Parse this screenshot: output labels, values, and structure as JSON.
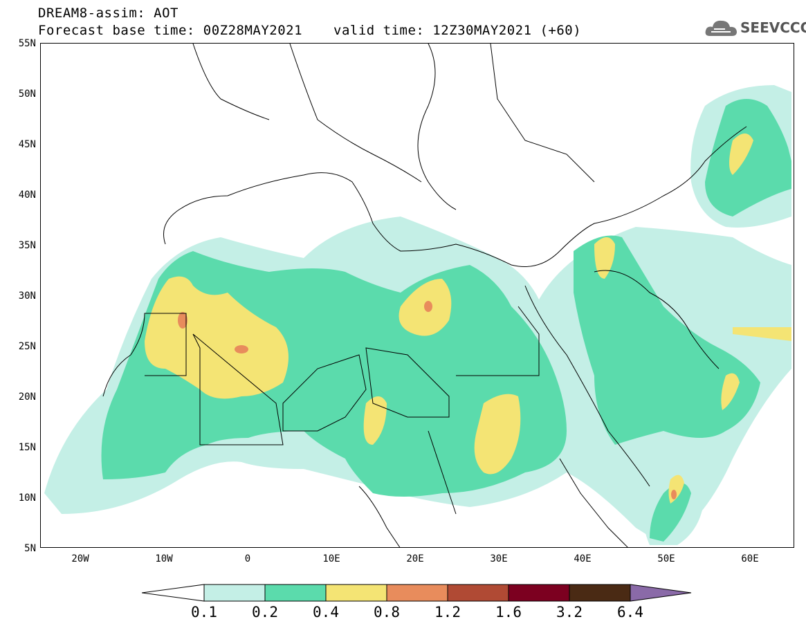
{
  "header": {
    "title": "DREAM8-assim: AOT",
    "base_time": "Forecast base time: 00Z28MAY2021",
    "valid_time": "valid time: 12Z30MAY2021 (+60)"
  },
  "logo": {
    "text": "SEEVCCC",
    "icon": "cloud-icon"
  },
  "map": {
    "lat_labels": [
      "55N",
      "50N",
      "45N",
      "40N",
      "35N",
      "30N",
      "25N",
      "20N",
      "15N",
      "10N",
      "5N"
    ],
    "lon_labels": [
      "20W",
      "10W",
      "0",
      "10E",
      "20E",
      "30E",
      "40E",
      "50E",
      "60E"
    ]
  },
  "legend": {
    "thresholds": [
      "0.1",
      "0.2",
      "0.4",
      "0.8",
      "1.2",
      "1.6",
      "3.2",
      "6.4"
    ],
    "colors": [
      "#ffffff",
      "#c4efe6",
      "#5bdbac",
      "#f4e474",
      "#e88c5c",
      "#b04a34",
      "#7c0020",
      "#4a2a14",
      "#8a6aa8"
    ]
  }
}
